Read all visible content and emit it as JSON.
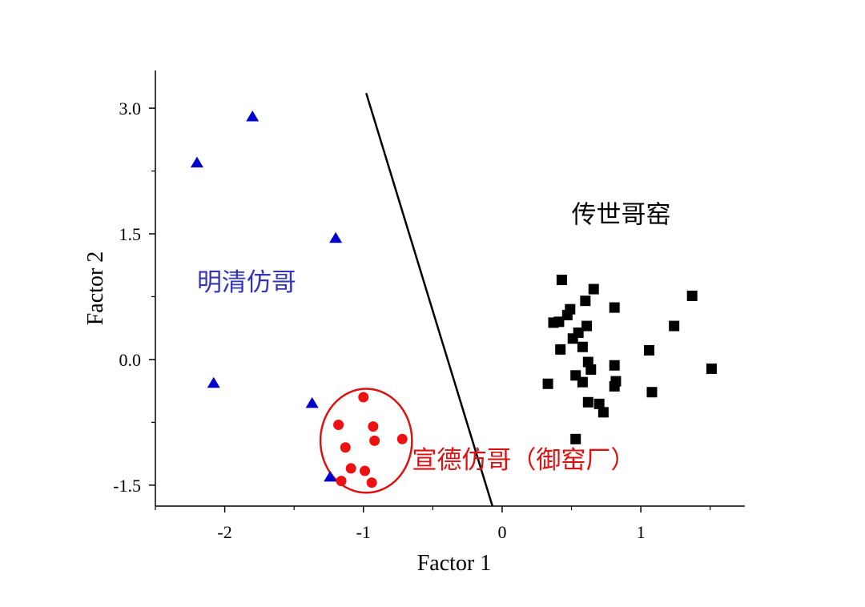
{
  "chart_data": {
    "type": "scatter",
    "xlabel": "Factor 1",
    "ylabel": "Factor 2",
    "xlim": [
      -2.5,
      1.75
    ],
    "ylim": [
      -1.75,
      3.45
    ],
    "xticks": [
      -2,
      -1,
      0,
      1
    ],
    "xtick_labels": [
      "-2",
      "-1",
      "0",
      "1"
    ],
    "yticks": [
      3.0,
      1.5,
      0.0,
      -1.5
    ],
    "ytick_labels": [
      "3.0",
      "1.5",
      "0.0",
      "-1.5"
    ],
    "grid": false,
    "series": [
      {
        "name": "明清仿哥",
        "marker": "triangle",
        "color": "#0000cc",
        "points": [
          [
            -2.2,
            2.35
          ],
          [
            -1.8,
            2.9
          ],
          [
            -1.2,
            1.45
          ],
          [
            -2.08,
            -0.28
          ],
          [
            -1.37,
            -0.52
          ],
          [
            -1.24,
            -1.4
          ]
        ]
      },
      {
        "name": "宣德仿哥（御窑厂）",
        "marker": "circle",
        "color": "#ee1111",
        "points": [
          [
            -1.0,
            -0.45
          ],
          [
            -1.18,
            -0.78
          ],
          [
            -0.93,
            -0.8
          ],
          [
            -0.92,
            -0.97
          ],
          [
            -1.13,
            -1.05
          ],
          [
            -0.72,
            -0.95
          ],
          [
            -1.09,
            -1.3
          ],
          [
            -0.99,
            -1.33
          ],
          [
            -1.16,
            -1.45
          ],
          [
            -0.94,
            -1.47
          ]
        ]
      },
      {
        "name": "传世哥窑",
        "marker": "square",
        "color": "#000000",
        "points": [
          [
            0.43,
            0.95
          ],
          [
            0.66,
            0.84
          ],
          [
            0.6,
            0.7
          ],
          [
            0.49,
            0.6
          ],
          [
            0.47,
            0.53
          ],
          [
            0.81,
            0.62
          ],
          [
            1.37,
            0.76
          ],
          [
            0.37,
            0.44
          ],
          [
            0.41,
            0.45
          ],
          [
            0.61,
            0.4
          ],
          [
            1.24,
            0.4
          ],
          [
            0.55,
            0.32
          ],
          [
            0.51,
            0.25
          ],
          [
            0.42,
            0.12
          ],
          [
            0.58,
            0.15
          ],
          [
            1.06,
            0.11
          ],
          [
            0.62,
            -0.03
          ],
          [
            0.64,
            -0.12
          ],
          [
            0.81,
            -0.07
          ],
          [
            0.53,
            -0.19
          ],
          [
            0.58,
            -0.27
          ],
          [
            0.82,
            -0.26
          ],
          [
            0.33,
            -0.29
          ],
          [
            0.81,
            -0.32
          ],
          [
            1.51,
            -0.11
          ],
          [
            1.08,
            -0.39
          ],
          [
            0.62,
            -0.51
          ],
          [
            0.7,
            -0.53
          ],
          [
            0.73,
            -0.63
          ],
          [
            0.53,
            -0.95
          ]
        ]
      }
    ],
    "separator_line": [
      [
        -0.98,
        3.18
      ],
      [
        -0.07,
        -1.75
      ]
    ],
    "highlight_ellipse": {
      "cx": -0.98,
      "cy": -0.97,
      "rx": 0.33,
      "ry": 0.62,
      "color": "#dd1111"
    },
    "annotations": [
      {
        "text": "传世哥窑",
        "x": 0.5,
        "y": 1.63,
        "color": "#000000"
      },
      {
        "text": "明清仿哥",
        "x": -2.2,
        "y": 0.82,
        "color": "#3333bb"
      },
      {
        "text": "宣德仿哥（御窑厂）",
        "x": -0.65,
        "y": -1.3,
        "color": "#dd1111"
      }
    ]
  }
}
